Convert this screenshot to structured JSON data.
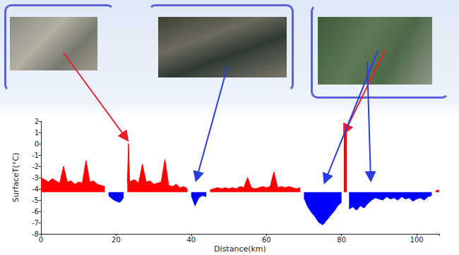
{
  "chart_data": {
    "type": "area",
    "x_label": "Distance(km)",
    "y_label": "SurfaceT(°C)",
    "baseline": -4.3,
    "x": [
      0,
      1,
      2,
      3,
      4,
      5,
      6,
      7,
      8,
      9,
      10,
      11,
      12,
      13,
      14,
      15,
      16,
      17,
      18,
      19,
      20,
      21,
      22,
      23,
      23.3,
      23.6,
      24,
      25,
      26,
      27,
      28,
      29,
      30,
      31,
      32,
      33,
      34,
      35,
      36,
      37,
      38,
      39,
      40,
      41,
      42,
      43,
      44,
      45,
      46,
      47,
      48,
      49,
      50,
      51,
      52,
      53,
      54,
      55,
      56,
      57,
      58,
      59,
      60,
      61,
      62,
      63,
      64,
      65,
      66,
      67,
      68,
      69,
      70,
      71,
      72,
      73,
      74,
      75,
      76,
      77,
      78,
      79,
      80,
      80.6,
      81,
      81.4,
      82,
      83,
      84,
      85,
      86,
      87,
      88,
      89,
      90,
      91,
      92,
      93,
      94,
      95,
      96,
      97,
      98,
      99,
      100,
      101,
      102,
      103,
      104,
      105,
      106
    ],
    "series": [
      {
        "color": "#ff0000",
        "values": [
          -3.0,
          -3.2,
          -3.4,
          -3.1,
          -3.3,
          -3.5,
          -2.0,
          -3.4,
          -3.3,
          -3.6,
          -3.4,
          -3.5,
          -1.5,
          -3.4,
          -3.3,
          -3.6,
          -3.7,
          -3.8,
          null,
          null,
          null,
          null,
          null,
          -3.5,
          0.0,
          -3.4,
          -3.3,
          -3.2,
          -3.5,
          -1.8,
          -3.4,
          -3.3,
          -3.6,
          -3.5,
          -3.4,
          -1.4,
          -3.7,
          -3.8,
          -3.6,
          -3.9,
          -3.8,
          -4.0,
          null,
          null,
          null,
          null,
          null,
          -4.1,
          -4.0,
          -3.9,
          -4.0,
          -3.9,
          -4.0,
          -3.9,
          -4.0,
          -3.8,
          -3.9,
          -3.0,
          -3.9,
          -4.0,
          -3.9,
          -3.8,
          -3.9,
          -3.8,
          -2.5,
          -3.9,
          -3.8,
          -3.9,
          -3.8,
          -3.9,
          -4.0,
          -3.9,
          null,
          null,
          null,
          null,
          null,
          null,
          null,
          null,
          null,
          null,
          null,
          1.2,
          1.3,
          1.1,
          null,
          null,
          null,
          null,
          null,
          null,
          null,
          null,
          null,
          null,
          null,
          null,
          null,
          null,
          null,
          null,
          null,
          null,
          null,
          null,
          null,
          null,
          null,
          -4.2,
          -4.1
        ]
      },
      {
        "color": "#0000ff",
        "values": [
          null,
          null,
          null,
          null,
          null,
          null,
          null,
          null,
          null,
          null,
          null,
          null,
          null,
          null,
          null,
          null,
          null,
          null,
          -4.6,
          -4.9,
          -5.1,
          -5.2,
          -4.8,
          null,
          null,
          null,
          null,
          null,
          null,
          null,
          null,
          null,
          null,
          null,
          null,
          null,
          null,
          null,
          null,
          null,
          null,
          null,
          -4.6,
          -5.5,
          -4.8,
          -4.6,
          -4.7,
          null,
          null,
          null,
          null,
          null,
          null,
          null,
          null,
          null,
          null,
          null,
          null,
          null,
          null,
          null,
          null,
          null,
          null,
          null,
          null,
          null,
          null,
          null,
          null,
          null,
          -4.8,
          -5.6,
          -6.1,
          -6.5,
          -7.0,
          -7.2,
          -6.8,
          -6.4,
          -6.0,
          -5.5,
          -5.2,
          null,
          null,
          null,
          -5.8,
          -5.6,
          -5.9,
          -5.5,
          -5.7,
          -5.3,
          -5.0,
          -4.8,
          -4.9,
          -5.0,
          -4.7,
          -4.9,
          -4.8,
          -5.0,
          -4.7,
          -4.9,
          -4.8,
          -5.1,
          -4.9,
          -4.8,
          -5.0,
          -4.7,
          -4.6,
          null,
          null
        ]
      }
    ],
    "xlim": [
      0,
      106
    ],
    "xticks": [
      0,
      20,
      40,
      60,
      80,
      100
    ],
    "ylim": [
      -8,
      2
    ],
    "yticks": [
      -8,
      -7,
      -6,
      -5,
      -4,
      -3,
      -2,
      -1,
      0,
      1,
      2
    ],
    "grid": false
  }
}
